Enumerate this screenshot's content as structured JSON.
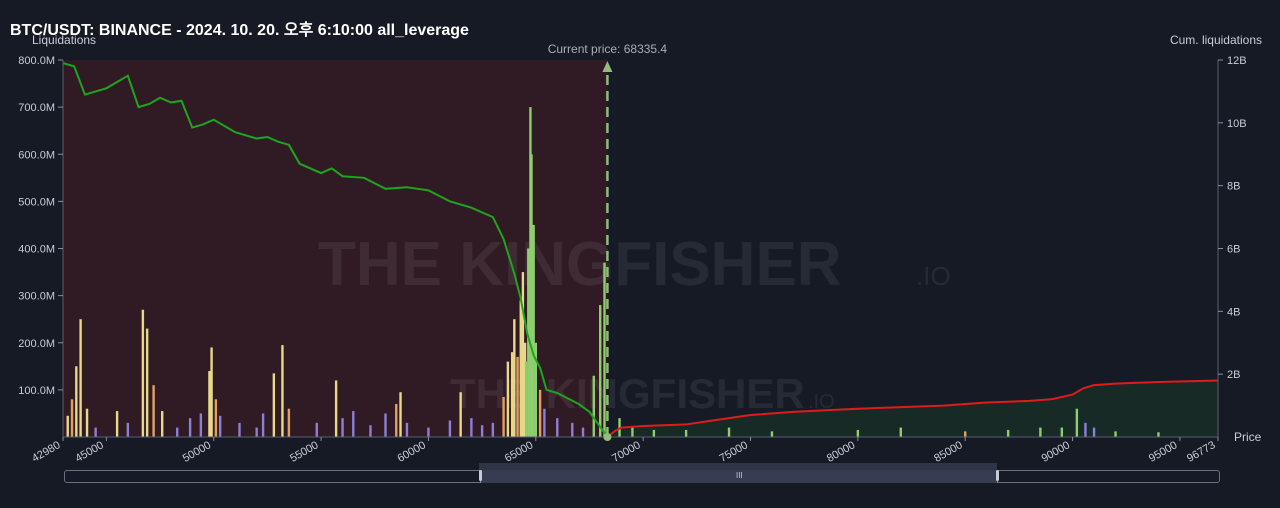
{
  "header": {
    "title": "BTC/USDT: BINANCE - 2024. 10. 20. 오후 6:10:00 all_leverage",
    "left_axis_caption": "Liquidations",
    "right_axis_caption": "Cum. liquidations",
    "x_axis_caption": "Price"
  },
  "watermark": "THE KINGFISHER",
  "watermark_suffix": ".IO",
  "colors": {
    "background": "#161a25",
    "short_side_fill": "#3a1c24",
    "long_side_fill": "#172a26",
    "cum_short_line": "#1ea51e",
    "cum_long_line": "#e01b1b",
    "bar_yellow": "#e8d88a",
    "bar_orange": "#e0a060",
    "bar_purple": "#8c7fd4",
    "bar_green": "#8fce6e",
    "current_price_line": "#8fbf7a"
  },
  "chart_data": {
    "type": "bar",
    "title": "BTC/USDT: BINANCE - 2024. 10. 20. 오후 6:10:00 all_leverage",
    "xlabel": "Price",
    "ylabel": "Liquidations",
    "y2label": "Cum. liquidations",
    "xlim": [
      42980,
      96773
    ],
    "ylim": [
      0,
      800000000
    ],
    "y2lim": [
      0,
      12000000000
    ],
    "x_tick_values": [
      42980,
      45000,
      50000,
      55000,
      60000,
      65000,
      70000,
      75000,
      80000,
      85000,
      90000,
      95000,
      96773
    ],
    "x_tick_labels": [
      "42980",
      "45000",
      "50000",
      "55000",
      "60000",
      "65000",
      "70000",
      "75000",
      "80000",
      "85000",
      "90000",
      "95000",
      "96773"
    ],
    "y_tick_values": [
      100000000,
      200000000,
      300000000,
      400000000,
      500000000,
      600000000,
      700000000,
      800000000
    ],
    "y_tick_labels": [
      "100.0M",
      "200.0M",
      "300.0M",
      "400.0M",
      "500.0M",
      "600.0M",
      "700.0M",
      "800.0M"
    ],
    "y2_tick_values": [
      2000000000,
      4000000000,
      6000000000,
      8000000000,
      10000000000,
      12000000000
    ],
    "y2_tick_labels": [
      "2B",
      "4B",
      "6B",
      "8B",
      "10B",
      "12B"
    ],
    "current_price": 68335.4,
    "current_price_label": "Current price: 68335.4",
    "grid": false,
    "series": [
      {
        "kind": "cumulative_line",
        "side": "below_price",
        "x": [
          42980,
          43500,
          44000,
          45000,
          46000,
          46500,
          47000,
          47500,
          48000,
          48500,
          49000,
          49500,
          50000,
          51000,
          52000,
          52500,
          53000,
          53500,
          54000,
          55000,
          55500,
          56000,
          57000,
          58000,
          59000,
          59500,
          60000,
          61000,
          62000,
          63000,
          63500,
          64000,
          64300,
          64600,
          64900,
          65200,
          65500,
          66000,
          67000,
          67500,
          68335.4
        ],
        "y": [
          11900000000,
          11800000000,
          10900000000,
          11100000000,
          11500000000,
          10500000000,
          10600000000,
          10800000000,
          10650000000,
          10700000000,
          9850000000,
          9950000000,
          10100000000,
          9700000000,
          9500000000,
          9550000000,
          9400000000,
          9300000000,
          8700000000,
          8400000000,
          8550000000,
          8300000000,
          8250000000,
          7900000000,
          7950000000,
          7900000000,
          7850000000,
          7500000000,
          7300000000,
          7000000000,
          6300000000,
          5200000000,
          4400000000,
          3300000000,
          2600000000,
          2200000000,
          1500000000,
          1400000000,
          1050000000,
          800000000,
          0
        ]
      },
      {
        "kind": "cumulative_line",
        "side": "above_price",
        "x": [
          68335.4,
          68700,
          69000,
          70000,
          72000,
          73000,
          75000,
          77000,
          78500,
          80000,
          82000,
          84000,
          85000,
          86000,
          88000,
          89000,
          90000,
          90500,
          91000,
          92000,
          94000,
          96773
        ],
        "y": [
          0,
          200000000,
          300000000,
          350000000,
          400000000,
          500000000,
          700000000,
          800000000,
          850000000,
          900000000,
          950000000,
          1000000000,
          1050000000,
          1100000000,
          1150000000,
          1200000000,
          1350000000,
          1550000000,
          1650000000,
          1700000000,
          1750000000,
          1800000000
        ]
      },
      {
        "kind": "liquidation_bars",
        "bars": [
          {
            "x": 43200,
            "y": 45000000,
            "c": "yellow"
          },
          {
            "x": 43400,
            "y": 80000000,
            "c": "orange"
          },
          {
            "x": 43600,
            "y": 150000000,
            "c": "yellow"
          },
          {
            "x": 43800,
            "y": 250000000,
            "c": "yellow"
          },
          {
            "x": 44100,
            "y": 60000000,
            "c": "yellow"
          },
          {
            "x": 44500,
            "y": 20000000,
            "c": "purple"
          },
          {
            "x": 45500,
            "y": 55000000,
            "c": "yellow"
          },
          {
            "x": 46000,
            "y": 30000000,
            "c": "purple"
          },
          {
            "x": 46700,
            "y": 270000000,
            "c": "yellow"
          },
          {
            "x": 46900,
            "y": 230000000,
            "c": "yellow"
          },
          {
            "x": 47200,
            "y": 110000000,
            "c": "orange"
          },
          {
            "x": 47600,
            "y": 55000000,
            "c": "yellow"
          },
          {
            "x": 48300,
            "y": 20000000,
            "c": "purple"
          },
          {
            "x": 48900,
            "y": 40000000,
            "c": "purple"
          },
          {
            "x": 49400,
            "y": 50000000,
            "c": "purple"
          },
          {
            "x": 49800,
            "y": 140000000,
            "c": "yellow"
          },
          {
            "x": 49900,
            "y": 190000000,
            "c": "yellow"
          },
          {
            "x": 50100,
            "y": 80000000,
            "c": "orange"
          },
          {
            "x": 50300,
            "y": 45000000,
            "c": "purple"
          },
          {
            "x": 51200,
            "y": 30000000,
            "c": "purple"
          },
          {
            "x": 52000,
            "y": 20000000,
            "c": "purple"
          },
          {
            "x": 52300,
            "y": 50000000,
            "c": "purple"
          },
          {
            "x": 52800,
            "y": 135000000,
            "c": "yellow"
          },
          {
            "x": 53200,
            "y": 195000000,
            "c": "yellow"
          },
          {
            "x": 53500,
            "y": 60000000,
            "c": "orange"
          },
          {
            "x": 54800,
            "y": 30000000,
            "c": "purple"
          },
          {
            "x": 55700,
            "y": 120000000,
            "c": "yellow"
          },
          {
            "x": 56000,
            "y": 40000000,
            "c": "purple"
          },
          {
            "x": 56500,
            "y": 55000000,
            "c": "purple"
          },
          {
            "x": 57300,
            "y": 25000000,
            "c": "purple"
          },
          {
            "x": 58000,
            "y": 50000000,
            "c": "purple"
          },
          {
            "x": 58500,
            "y": 70000000,
            "c": "orange"
          },
          {
            "x": 58700,
            "y": 95000000,
            "c": "yellow"
          },
          {
            "x": 59000,
            "y": 30000000,
            "c": "purple"
          },
          {
            "x": 60000,
            "y": 20000000,
            "c": "purple"
          },
          {
            "x": 61000,
            "y": 35000000,
            "c": "purple"
          },
          {
            "x": 61500,
            "y": 95000000,
            "c": "yellow"
          },
          {
            "x": 62000,
            "y": 40000000,
            "c": "purple"
          },
          {
            "x": 62500,
            "y": 25000000,
            "c": "purple"
          },
          {
            "x": 63000,
            "y": 30000000,
            "c": "purple"
          },
          {
            "x": 63500,
            "y": 85000000,
            "c": "orange"
          },
          {
            "x": 63700,
            "y": 160000000,
            "c": "yellow"
          },
          {
            "x": 63900,
            "y": 180000000,
            "c": "yellow"
          },
          {
            "x": 64000,
            "y": 250000000,
            "c": "yellow"
          },
          {
            "x": 64150,
            "y": 170000000,
            "c": "orange"
          },
          {
            "x": 64300,
            "y": 290000000,
            "c": "yellow"
          },
          {
            "x": 64400,
            "y": 350000000,
            "c": "yellow"
          },
          {
            "x": 64500,
            "y": 200000000,
            "c": "yellow"
          },
          {
            "x": 64550,
            "y": 160000000,
            "c": "green"
          },
          {
            "x": 64650,
            "y": 400000000,
            "c": "green"
          },
          {
            "x": 64750,
            "y": 700000000,
            "c": "green"
          },
          {
            "x": 64800,
            "y": 600000000,
            "c": "green"
          },
          {
            "x": 64900,
            "y": 450000000,
            "c": "green"
          },
          {
            "x": 65000,
            "y": 200000000,
            "c": "green"
          },
          {
            "x": 65200,
            "y": 100000000,
            "c": "orange"
          },
          {
            "x": 65400,
            "y": 60000000,
            "c": "purple"
          },
          {
            "x": 66000,
            "y": 40000000,
            "c": "purple"
          },
          {
            "x": 66700,
            "y": 30000000,
            "c": "purple"
          },
          {
            "x": 67200,
            "y": 20000000,
            "c": "purple"
          },
          {
            "x": 67700,
            "y": 130000000,
            "c": "green"
          },
          {
            "x": 68000,
            "y": 280000000,
            "c": "green"
          },
          {
            "x": 68200,
            "y": 370000000,
            "c": "green"
          },
          {
            "x": 68900,
            "y": 40000000,
            "c": "green"
          },
          {
            "x": 69500,
            "y": 20000000,
            "c": "green"
          },
          {
            "x": 70500,
            "y": 15000000,
            "c": "green"
          },
          {
            "x": 72000,
            "y": 15000000,
            "c": "green"
          },
          {
            "x": 74000,
            "y": 20000000,
            "c": "green"
          },
          {
            "x": 76000,
            "y": 12000000,
            "c": "green"
          },
          {
            "x": 80000,
            "y": 15000000,
            "c": "green"
          },
          {
            "x": 82000,
            "y": 20000000,
            "c": "green"
          },
          {
            "x": 85000,
            "y": 12000000,
            "c": "orange"
          },
          {
            "x": 87000,
            "y": 15000000,
            "c": "green"
          },
          {
            "x": 88500,
            "y": 20000000,
            "c": "green"
          },
          {
            "x": 89500,
            "y": 20000000,
            "c": "green"
          },
          {
            "x": 90200,
            "y": 60000000,
            "c": "green"
          },
          {
            "x": 90600,
            "y": 30000000,
            "c": "purple"
          },
          {
            "x": 91000,
            "y": 20000000,
            "c": "purple"
          },
          {
            "x": 92000,
            "y": 12000000,
            "c": "green"
          },
          {
            "x": 94000,
            "y": 10000000,
            "c": "green"
          }
        ]
      }
    ]
  }
}
